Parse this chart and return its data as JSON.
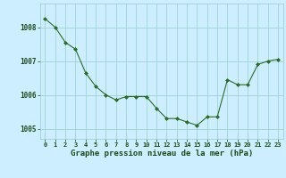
{
  "x": [
    0,
    1,
    2,
    3,
    4,
    5,
    6,
    7,
    8,
    9,
    10,
    11,
    12,
    13,
    14,
    15,
    16,
    17,
    18,
    19,
    20,
    21,
    22,
    23
  ],
  "y": [
    1008.25,
    1008.0,
    1007.55,
    1007.35,
    1006.65,
    1006.25,
    1006.0,
    1005.85,
    1005.95,
    1005.95,
    1005.95,
    1005.6,
    1005.3,
    1005.3,
    1005.2,
    1005.1,
    1005.35,
    1005.35,
    1006.45,
    1006.3,
    1006.3,
    1006.9,
    1007.0,
    1007.05
  ],
  "line_color": "#2d6a2d",
  "marker": "D",
  "marker_size": 2.0,
  "bg_color": "#cceeff",
  "grid_color": "#99cccc",
  "xlabel": "Graphe pression niveau de la mer (hPa)",
  "xlabel_color": "#1a4a1a",
  "xlabel_fontsize": 6.5,
  "tick_color": "#1a4a1a",
  "tick_fontsize": 5.0,
  "ytick_fontsize": 5.5,
  "ylim": [
    1004.7,
    1008.7
  ],
  "yticks": [
    1005,
    1006,
    1007,
    1008
  ],
  "xlim": [
    -0.5,
    23.5
  ],
  "xticks": [
    0,
    1,
    2,
    3,
    4,
    5,
    6,
    7,
    8,
    9,
    10,
    11,
    12,
    13,
    14,
    15,
    16,
    17,
    18,
    19,
    20,
    21,
    22,
    23
  ]
}
